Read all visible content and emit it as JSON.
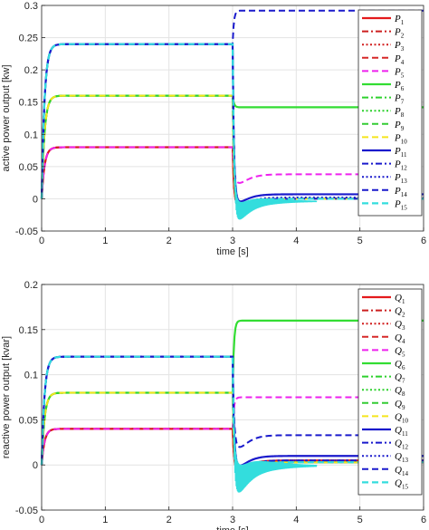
{
  "chart_data": [
    {
      "type": "line",
      "title": "",
      "xlabel": "time [s]",
      "ylabel": "active power output [kw]",
      "xlim": [
        0,
        6
      ],
      "ylim": [
        -0.05,
        0.3
      ],
      "xticks": [
        "0",
        "1",
        "2",
        "3",
        "4",
        "5",
        "6"
      ],
      "yticks": [
        "-0.05",
        "0",
        "0.05",
        "0.1",
        "0.15",
        "0.2",
        "0.25",
        "0.3"
      ],
      "grid": true,
      "legend_position": "right",
      "legend_symbol": "P",
      "series": [
        {
          "name": "P1",
          "sub": "1",
          "color": "#e41a1c",
          "dash": "solid",
          "width": 2.2,
          "before": 0.08,
          "after": 0.0
        },
        {
          "name": "P2",
          "sub": "2",
          "color": "#cc1f1f",
          "dash": "dashdot",
          "width": 2.0,
          "before": 0.08,
          "after": 0.0
        },
        {
          "name": "P3",
          "sub": "3",
          "color": "#d11f1f",
          "dash": "dotted",
          "width": 2.0,
          "before": 0.08,
          "after": 0.0
        },
        {
          "name": "P4",
          "sub": "4",
          "color": "#d62828",
          "dash": "dashed",
          "width": 2.0,
          "before": 0.08,
          "after": 0.0
        },
        {
          "name": "P5",
          "sub": "5",
          "color": "#ee22ee",
          "dash": "dashed",
          "width": 2.0,
          "before": 0.08,
          "after": 0.038
        },
        {
          "name": "P6",
          "sub": "6",
          "color": "#33dd33",
          "dash": "solid",
          "width": 2.2,
          "before": 0.16,
          "after": 0.142
        },
        {
          "name": "P7",
          "sub": "7",
          "color": "#2ed12e",
          "dash": "dashdot",
          "width": 2.0,
          "before": 0.16,
          "after": 0.0
        },
        {
          "name": "P8",
          "sub": "8",
          "color": "#2ed12e",
          "dash": "dotted",
          "width": 2.0,
          "before": 0.16,
          "after": 0.0
        },
        {
          "name": "P9",
          "sub": "9",
          "color": "#33cc33",
          "dash": "dashed",
          "width": 2.0,
          "before": 0.16,
          "after": 0.0
        },
        {
          "name": "P10",
          "sub": "10",
          "color": "#f5e51c",
          "dash": "dashed",
          "width": 2.0,
          "before": 0.16,
          "after": 0.0
        },
        {
          "name": "P11",
          "sub": "11",
          "color": "#1a1acc",
          "dash": "solid",
          "width": 2.2,
          "before": 0.24,
          "after": 0.007
        },
        {
          "name": "P12",
          "sub": "12",
          "color": "#1a1acc",
          "dash": "dashdot",
          "width": 2.0,
          "before": 0.24,
          "after": 0.0
        },
        {
          "name": "P13",
          "sub": "13",
          "color": "#1a1acc",
          "dash": "dotted",
          "width": 2.0,
          "before": 0.24,
          "after": 0.002
        },
        {
          "name": "P14",
          "sub": "14",
          "color": "#1a1acc",
          "dash": "dashed",
          "width": 2.0,
          "before": 0.24,
          "after": 0.292
        },
        {
          "name": "P15",
          "sub": "15",
          "color": "#33dddd",
          "dash": "dashed",
          "width": 2.2,
          "before": 0.24,
          "after": 0.0
        }
      ]
    },
    {
      "type": "line",
      "title": "",
      "xlabel": "time [s]",
      "ylabel": "reactive power output [kvar]",
      "xlim": [
        0,
        6
      ],
      "ylim": [
        -0.05,
        0.2
      ],
      "xticks": [
        "0",
        "1",
        "2",
        "3",
        "4",
        "5",
        "6"
      ],
      "yticks": [
        "-0.05",
        "0",
        "0.05",
        "0.1",
        "0.15",
        "0.2"
      ],
      "grid": true,
      "legend_position": "right",
      "legend_symbol": "Q",
      "series": [
        {
          "name": "Q1",
          "sub": "1",
          "color": "#e41a1c",
          "dash": "solid",
          "width": 2.2,
          "before": 0.04,
          "after": 0.005
        },
        {
          "name": "Q2",
          "sub": "2",
          "color": "#cc1f1f",
          "dash": "dashdot",
          "width": 2.0,
          "before": 0.04,
          "after": 0.003
        },
        {
          "name": "Q3",
          "sub": "3",
          "color": "#d11f1f",
          "dash": "dotted",
          "width": 2.0,
          "before": 0.04,
          "after": 0.003
        },
        {
          "name": "Q4",
          "sub": "4",
          "color": "#d62828",
          "dash": "dashed",
          "width": 2.0,
          "before": 0.04,
          "after": 0.003
        },
        {
          "name": "Q5",
          "sub": "5",
          "color": "#ee22ee",
          "dash": "dashed",
          "width": 2.0,
          "before": 0.04,
          "after": 0.075
        },
        {
          "name": "Q6",
          "sub": "6",
          "color": "#33dd33",
          "dash": "solid",
          "width": 2.2,
          "before": 0.08,
          "after": 0.16
        },
        {
          "name": "Q7",
          "sub": "7",
          "color": "#2ed12e",
          "dash": "dashdot",
          "width": 2.0,
          "before": 0.08,
          "after": 0.003
        },
        {
          "name": "Q8",
          "sub": "8",
          "color": "#2ed12e",
          "dash": "dotted",
          "width": 2.0,
          "before": 0.08,
          "after": 0.003
        },
        {
          "name": "Q9",
          "sub": "9",
          "color": "#33cc33",
          "dash": "dashed",
          "width": 2.0,
          "before": 0.08,
          "after": 0.003
        },
        {
          "name": "Q10",
          "sub": "10",
          "color": "#f5e51c",
          "dash": "dashed",
          "width": 2.0,
          "before": 0.08,
          "after": 0.003
        },
        {
          "name": "Q11",
          "sub": "11",
          "color": "#1a1acc",
          "dash": "solid",
          "width": 2.2,
          "before": 0.12,
          "after": 0.01
        },
        {
          "name": "Q12",
          "sub": "12",
          "color": "#1a1acc",
          "dash": "dashdot",
          "width": 2.0,
          "before": 0.12,
          "after": 0.005
        },
        {
          "name": "Q13",
          "sub": "13",
          "color": "#1a1acc",
          "dash": "dotted",
          "width": 2.0,
          "before": 0.12,
          "after": 0.005
        },
        {
          "name": "Q14",
          "sub": "14",
          "color": "#1a1acc",
          "dash": "dashed",
          "width": 2.0,
          "before": 0.12,
          "after": 0.033
        },
        {
          "name": "Q15",
          "sub": "15",
          "color": "#33dddd",
          "dash": "dashed",
          "width": 2.2,
          "before": 0.12,
          "after": 0.003
        }
      ]
    }
  ]
}
